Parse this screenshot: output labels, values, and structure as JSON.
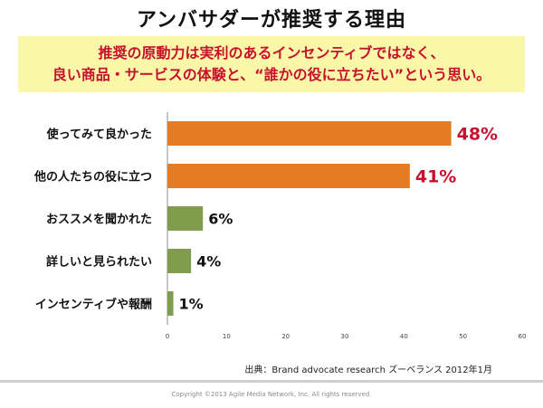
{
  "slide": {
    "title": "アンバサダーが推奨する理由",
    "banner_lines": [
      "推奨の原動力は実利のあるインセンティブではなく、",
      "良い商品・サービスの体験と、“誰かの役に立ちたい”という思い。"
    ],
    "source": "出典：Brand advocate research  ズーベランス  2012年1月",
    "copyright": "Copyright ©2013 Agile Media Network, Inc. All rights reserved."
  },
  "chart_data": {
    "type": "bar",
    "orientation": "horizontal",
    "categories": [
      "使ってみて良かった",
      "他の人たちの役に立つ",
      "おススメを聞かれた",
      "詳しいと見られたい",
      "インセンティブや報酬"
    ],
    "values": [
      48,
      41,
      6,
      4,
      1
    ],
    "value_labels": [
      "48%",
      "41%",
      "6%",
      "4%",
      "1%"
    ],
    "bar_colors": [
      "#e57b25",
      "#e57b25",
      "#7f9d4c",
      "#7f9d4c",
      "#7f9d4c"
    ],
    "label_colors": [
      "#c8102e",
      "#c8102e",
      "#111111",
      "#111111",
      "#111111"
    ],
    "xlim": [
      0,
      60
    ],
    "xticks": [
      0,
      10,
      20,
      30,
      40,
      50,
      60
    ],
    "xlabel": "",
    "ylabel": "",
    "grid": false,
    "legend": "none"
  }
}
